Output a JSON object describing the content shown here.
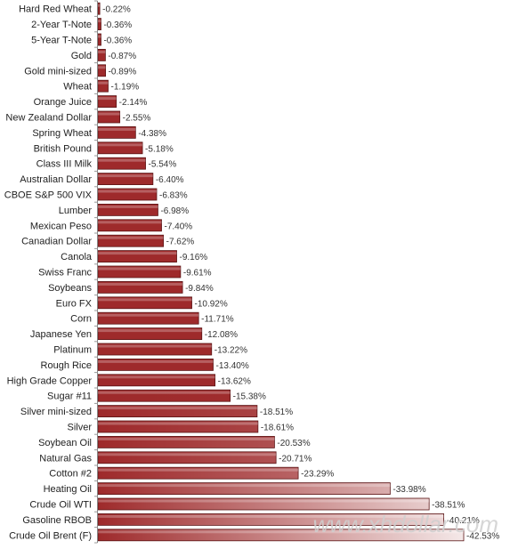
{
  "chart_data": {
    "type": "bar",
    "orientation": "horizontal",
    "categories": [
      "Hard Red Wheat",
      "2-Year T-Note",
      "5-Year T-Note",
      "Gold",
      "Gold mini-sized",
      "Wheat",
      "Orange Juice",
      "New Zealand Dollar",
      "Spring Wheat",
      "British Pound",
      "Class III Milk",
      "Australian Dollar",
      "CBOE S&P 500 VIX",
      "Lumber",
      "Mexican Peso",
      "Canadian Dollar",
      "Canola",
      "Swiss Franc",
      "Soybeans",
      "Euro FX",
      "Corn",
      "Japanese Yen",
      "Platinum",
      "Rough Rice",
      "High Grade Copper",
      "Sugar #11",
      "Silver mini-sized",
      "Silver",
      "Soybean Oil",
      "Natural Gas",
      "Cotton #2",
      "Heating Oil",
      "Crude Oil WTI",
      "Gasoline RBOB",
      "Crude Oil Brent (F)"
    ],
    "values": [
      -0.22,
      -0.36,
      -0.36,
      -0.87,
      -0.89,
      -1.19,
      -2.14,
      -2.55,
      -4.38,
      -5.18,
      -5.54,
      -6.4,
      -6.83,
      -6.98,
      -7.4,
      -7.62,
      -9.16,
      -9.61,
      -9.84,
      -10.92,
      -11.71,
      -12.08,
      -13.22,
      -13.4,
      -13.62,
      -15.38,
      -18.51,
      -18.61,
      -20.53,
      -20.71,
      -23.29,
      -33.98,
      -38.51,
      -40.21,
      -42.53
    ],
    "value_labels": [
      "-0.22%",
      "-0.36%",
      "-0.36%",
      "-0.87%",
      "-0.89%",
      "-1.19%",
      "-2.14%",
      "-2.55%",
      "-4.38%",
      "-5.18%",
      "-5.54%",
      "-6.40%",
      "-6.83%",
      "-6.98%",
      "-7.40%",
      "-7.62%",
      "-9.16%",
      "-9.61%",
      "-9.84%",
      "-10.92%",
      "-11.71%",
      "-12.08%",
      "-13.22%",
      "-13.40%",
      "-13.62%",
      "-15.38%",
      "-18.51%",
      "-18.61%",
      "-20.53%",
      "-20.71%",
      "-23.29%",
      "-33.98%",
      "-38.51%",
      "-40.21%",
      "-42.53%"
    ],
    "unit": "%",
    "title": "",
    "xlabel": "",
    "ylabel": "",
    "grid": false,
    "legend": "none",
    "colors": {
      "bar_dark": "#9e2a2b",
      "bar_light": "#f4e8e8",
      "bar_edge": "#5a1415"
    }
  },
  "watermark": "www.xhdollar.com"
}
